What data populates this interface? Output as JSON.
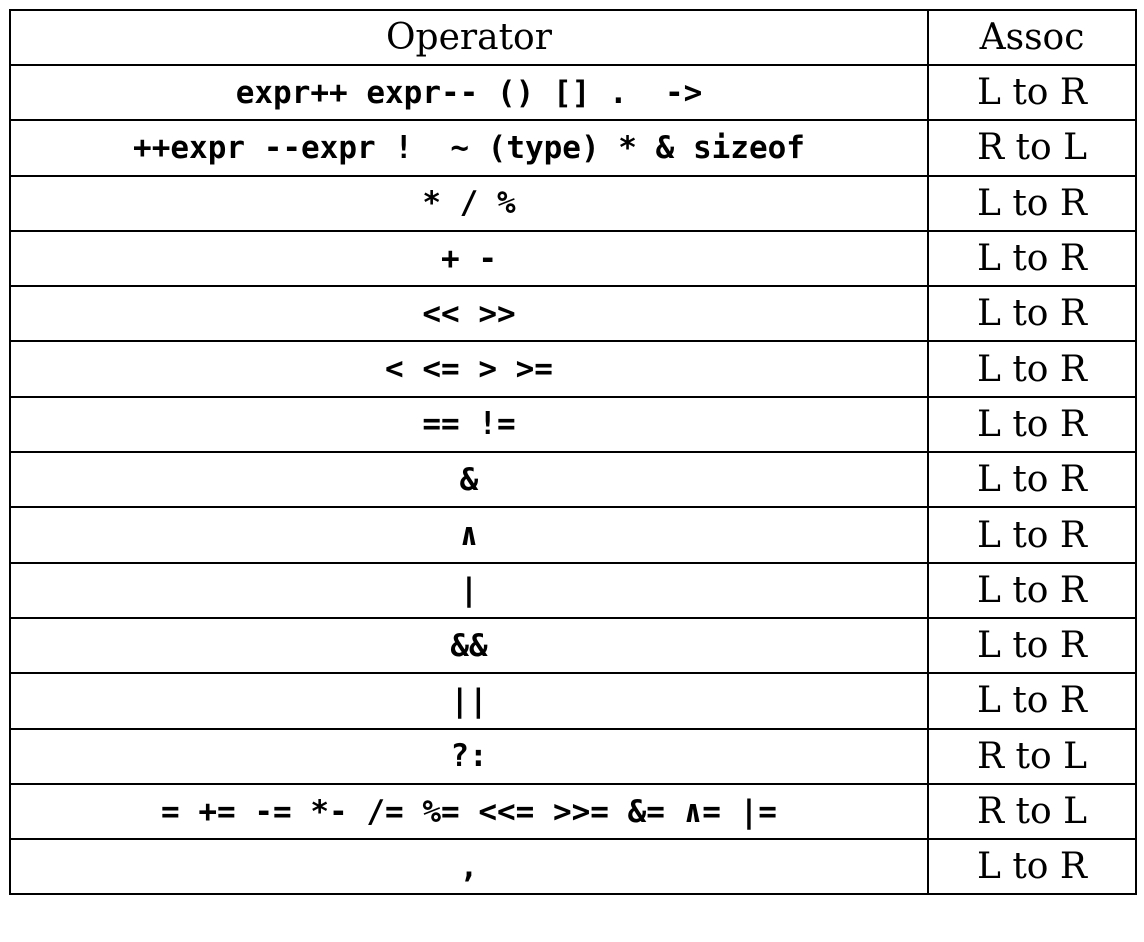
{
  "header": {
    "operator_label": "Operator",
    "assoc_label": "Assoc"
  },
  "rows": [
    {
      "operator": "expr++ expr-- () [] .  ->",
      "assoc": "L to R"
    },
    {
      "operator": "++expr --expr !  ~ (type) * & sizeof",
      "assoc": "R to L"
    },
    {
      "operator": "* / %",
      "assoc": "L to R"
    },
    {
      "operator": "+ -",
      "assoc": "L to R"
    },
    {
      "operator": "<< >>",
      "assoc": "L to R"
    },
    {
      "operator": "< <= > >=",
      "assoc": "L to R"
    },
    {
      "operator": "== !=",
      "assoc": "L to R"
    },
    {
      "operator": "&",
      "assoc": "L to R"
    },
    {
      "operator": "∧",
      "assoc": "L to R"
    },
    {
      "operator": "|",
      "assoc": "L to R"
    },
    {
      "operator": "&&",
      "assoc": "L to R"
    },
    {
      "operator": "||",
      "assoc": "L to R"
    },
    {
      "operator": "?:",
      "assoc": "R to L"
    },
    {
      "operator": "= += -= *- /= %= <<= >>= &= ∧= |=",
      "assoc": "R to L"
    },
    {
      "operator": ",",
      "assoc": "L to R"
    }
  ]
}
